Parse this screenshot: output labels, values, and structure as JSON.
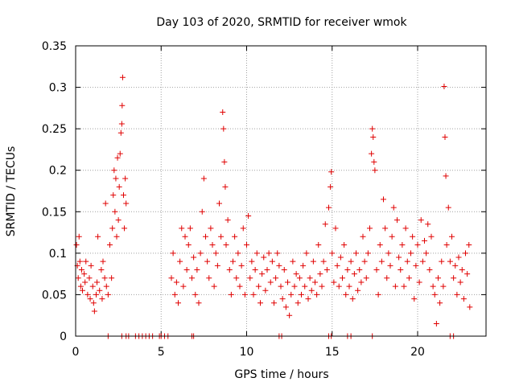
{
  "chart_data": {
    "type": "scatter",
    "title": "Day 103 of 2020, SRMTID for receiver wmok",
    "xlabel": "GPS time / hours",
    "ylabel": "SRMTID / TECUs",
    "xlim": [
      0,
      24
    ],
    "ylim": [
      0,
      0.35
    ],
    "xticks": [
      0,
      5,
      10,
      15,
      20
    ],
    "xtick_labels": [
      "0",
      "5",
      "10",
      "15",
      "20"
    ],
    "yticks": [
      0,
      0.05,
      0.1,
      0.15,
      0.2,
      0.25,
      0.3,
      0.35
    ],
    "ytick_labels": [
      "0",
      "0.05",
      "0.1",
      "0.15",
      "0.2",
      "0.25",
      "0.3",
      "0.35"
    ],
    "grid": true,
    "marker": "plus",
    "color": "#e00000",
    "series": [
      {
        "name": "SRMTID",
        "points": [
          [
            0.05,
            0.11
          ],
          [
            0.1,
            0.085
          ],
          [
            0.15,
            0.07
          ],
          [
            0.2,
            0.12
          ],
          [
            0.25,
            0.09
          ],
          [
            0.3,
            0.06
          ],
          [
            0.35,
            0.08
          ],
          [
            0.4,
            0.055
          ],
          [
            0.5,
            0.075
          ],
          [
            0.55,
            0.065
          ],
          [
            0.6,
            0.09
          ],
          [
            0.7,
            0.05
          ],
          [
            0.8,
            0.07
          ],
          [
            0.85,
            0.045
          ],
          [
            0.9,
            0.085
          ],
          [
            1.0,
            0.06
          ],
          [
            1.05,
            0.04
          ],
          [
            1.1,
            0.03
          ],
          [
            1.2,
            0.05
          ],
          [
            1.25,
            0.065
          ],
          [
            1.3,
            0.12
          ],
          [
            1.4,
            0.055
          ],
          [
            1.5,
            0.08
          ],
          [
            1.55,
            0.045
          ],
          [
            1.6,
            0.09
          ],
          [
            1.7,
            0.07
          ],
          [
            1.75,
            0.16
          ],
          [
            1.8,
            0.06
          ],
          [
            1.9,
            0.05
          ],
          [
            2.0,
            0.11
          ],
          [
            2.1,
            0.07
          ],
          [
            2.15,
            0.13
          ],
          [
            2.2,
            0.17
          ],
          [
            2.25,
            0.2
          ],
          [
            2.3,
            0.15
          ],
          [
            2.35,
            0.19
          ],
          [
            2.4,
            0.12
          ],
          [
            2.45,
            0.215
          ],
          [
            2.5,
            0.14
          ],
          [
            2.55,
            0.18
          ],
          [
            2.6,
            0.22
          ],
          [
            2.65,
            0.245
          ],
          [
            2.7,
            0.256
          ],
          [
            2.72,
            0.278
          ],
          [
            2.75,
            0.312
          ],
          [
            2.8,
            0.17
          ],
          [
            2.85,
            0.13
          ],
          [
            2.9,
            0.19
          ],
          [
            2.95,
            0.16
          ],
          [
            5.6,
            0.07
          ],
          [
            5.7,
            0.1
          ],
          [
            5.8,
            0.05
          ],
          [
            5.9,
            0.065
          ],
          [
            6.0,
            0.04
          ],
          [
            6.1,
            0.09
          ],
          [
            6.2,
            0.13
          ],
          [
            6.3,
            0.06
          ],
          [
            6.4,
            0.12
          ],
          [
            6.5,
            0.08
          ],
          [
            6.6,
            0.11
          ],
          [
            6.7,
            0.13
          ],
          [
            6.8,
            0.07
          ],
          [
            6.9,
            0.095
          ],
          [
            7.0,
            0.05
          ],
          [
            7.1,
            0.08
          ],
          [
            7.2,
            0.04
          ],
          [
            7.3,
            0.1
          ],
          [
            7.4,
            0.15
          ],
          [
            7.5,
            0.19
          ],
          [
            7.6,
            0.12
          ],
          [
            7.7,
            0.09
          ],
          [
            7.8,
            0.07
          ],
          [
            7.9,
            0.13
          ],
          [
            8.0,
            0.11
          ],
          [
            8.1,
            0.06
          ],
          [
            8.2,
            0.1
          ],
          [
            8.3,
            0.085
          ],
          [
            8.4,
            0.16
          ],
          [
            8.5,
            0.12
          ],
          [
            8.6,
            0.27
          ],
          [
            8.65,
            0.25
          ],
          [
            8.7,
            0.21
          ],
          [
            8.75,
            0.18
          ],
          [
            8.8,
            0.11
          ],
          [
            8.9,
            0.14
          ],
          [
            9.0,
            0.08
          ],
          [
            9.1,
            0.05
          ],
          [
            9.2,
            0.09
          ],
          [
            9.3,
            0.12
          ],
          [
            9.4,
            0.07
          ],
          [
            9.5,
            0.1
          ],
          [
            9.6,
            0.06
          ],
          [
            9.7,
            0.085
          ],
          [
            9.8,
            0.13
          ],
          [
            9.9,
            0.05
          ],
          [
            10.0,
            0.11
          ],
          [
            10.1,
            0.145
          ],
          [
            10.2,
            0.07
          ],
          [
            10.3,
            0.09
          ],
          [
            10.4,
            0.05
          ],
          [
            10.5,
            0.08
          ],
          [
            10.6,
            0.1
          ],
          [
            10.7,
            0.06
          ],
          [
            10.8,
            0.04
          ],
          [
            10.9,
            0.075
          ],
          [
            11.0,
            0.095
          ],
          [
            11.1,
            0.055
          ],
          [
            11.2,
            0.08
          ],
          [
            11.3,
            0.1
          ],
          [
            11.4,
            0.065
          ],
          [
            11.5,
            0.09
          ],
          [
            11.6,
            0.04
          ],
          [
            11.7,
            0.07
          ],
          [
            11.8,
            0.1
          ],
          [
            11.9,
            0.085
          ],
          [
            12.0,
            0.06
          ],
          [
            12.1,
            0.045
          ],
          [
            12.2,
            0.08
          ],
          [
            12.3,
            0.035
          ],
          [
            12.4,
            0.065
          ],
          [
            12.5,
            0.025
          ],
          [
            12.6,
            0.05
          ],
          [
            12.7,
            0.09
          ],
          [
            12.8,
            0.06
          ],
          [
            12.9,
            0.075
          ],
          [
            13.0,
            0.04
          ],
          [
            13.1,
            0.07
          ],
          [
            13.2,
            0.05
          ],
          [
            13.3,
            0.085
          ],
          [
            13.4,
            0.06
          ],
          [
            13.5,
            0.1
          ],
          [
            13.6,
            0.045
          ],
          [
            13.7,
            0.07
          ],
          [
            13.8,
            0.055
          ],
          [
            13.9,
            0.09
          ],
          [
            14.0,
            0.065
          ],
          [
            14.1,
            0.05
          ],
          [
            14.2,
            0.11
          ],
          [
            14.3,
            0.075
          ],
          [
            14.4,
            0.06
          ],
          [
            14.5,
            0.09
          ],
          [
            14.6,
            0.135
          ],
          [
            14.7,
            0.08
          ],
          [
            14.8,
            0.155
          ],
          [
            14.9,
            0.18
          ],
          [
            14.95,
            0.198
          ],
          [
            15.0,
            0.1
          ],
          [
            15.1,
            0.065
          ],
          [
            15.2,
            0.13
          ],
          [
            15.3,
            0.085
          ],
          [
            15.4,
            0.06
          ],
          [
            15.5,
            0.095
          ],
          [
            15.6,
            0.07
          ],
          [
            15.7,
            0.11
          ],
          [
            15.8,
            0.05
          ],
          [
            15.9,
            0.08
          ],
          [
            16.0,
            0.06
          ],
          [
            16.1,
            0.09
          ],
          [
            16.2,
            0.045
          ],
          [
            16.3,
            0.075
          ],
          [
            16.4,
            0.1
          ],
          [
            16.5,
            0.055
          ],
          [
            16.6,
            0.08
          ],
          [
            16.7,
            0.065
          ],
          [
            16.8,
            0.12
          ],
          [
            16.9,
            0.09
          ],
          [
            17.0,
            0.07
          ],
          [
            17.1,
            0.1
          ],
          [
            17.2,
            0.13
          ],
          [
            17.3,
            0.22
          ],
          [
            17.35,
            0.25
          ],
          [
            17.4,
            0.24
          ],
          [
            17.45,
            0.21
          ],
          [
            17.5,
            0.2
          ],
          [
            17.6,
            0.08
          ],
          [
            17.7,
            0.05
          ],
          [
            17.8,
            0.11
          ],
          [
            17.9,
            0.09
          ],
          [
            18.0,
            0.165
          ],
          [
            18.1,
            0.13
          ],
          [
            18.2,
            0.07
          ],
          [
            18.3,
            0.1
          ],
          [
            18.4,
            0.085
          ],
          [
            18.5,
            0.12
          ],
          [
            18.6,
            0.155
          ],
          [
            18.7,
            0.06
          ],
          [
            18.8,
            0.14
          ],
          [
            18.9,
            0.095
          ],
          [
            19.0,
            0.08
          ],
          [
            19.1,
            0.11
          ],
          [
            19.2,
            0.06
          ],
          [
            19.3,
            0.13
          ],
          [
            19.4,
            0.09
          ],
          [
            19.5,
            0.07
          ],
          [
            19.6,
            0.1
          ],
          [
            19.7,
            0.12
          ],
          [
            19.8,
            0.045
          ],
          [
            19.9,
            0.085
          ],
          [
            20.0,
            0.11
          ],
          [
            20.1,
            0.065
          ],
          [
            20.2,
            0.14
          ],
          [
            20.3,
            0.09
          ],
          [
            20.4,
            0.115
          ],
          [
            20.5,
            0.1
          ],
          [
            20.6,
            0.135
          ],
          [
            20.7,
            0.08
          ],
          [
            20.8,
            0.12
          ],
          [
            20.9,
            0.06
          ],
          [
            21.0,
            0.05
          ],
          [
            21.1,
            0.015
          ],
          [
            21.2,
            0.07
          ],
          [
            21.3,
            0.04
          ],
          [
            21.4,
            0.09
          ],
          [
            21.5,
            0.06
          ],
          [
            21.55,
            0.301
          ],
          [
            21.6,
            0.24
          ],
          [
            21.65,
            0.193
          ],
          [
            21.7,
            0.11
          ],
          [
            21.8,
            0.155
          ],
          [
            21.9,
            0.09
          ],
          [
            22.0,
            0.12
          ],
          [
            22.1,
            0.07
          ],
          [
            22.2,
            0.085
          ],
          [
            22.3,
            0.05
          ],
          [
            22.4,
            0.095
          ],
          [
            22.5,
            0.065
          ],
          [
            22.6,
            0.08
          ],
          [
            22.7,
            0.045
          ],
          [
            22.8,
            0.1
          ],
          [
            22.9,
            0.075
          ],
          [
            23.0,
            0.11
          ],
          [
            23.05,
            0.035
          ],
          [
            1.9,
            0
          ],
          [
            2.7,
            0
          ],
          [
            2.95,
            0
          ],
          [
            3.1,
            0
          ],
          [
            3.5,
            0
          ],
          [
            3.7,
            0
          ],
          [
            3.9,
            0
          ],
          [
            4.1,
            0
          ],
          [
            4.3,
            0
          ],
          [
            4.5,
            0
          ],
          [
            4.9,
            0
          ],
          [
            5.0,
            0
          ],
          [
            5.2,
            0
          ],
          [
            5.4,
            0
          ],
          [
            6.8,
            0
          ],
          [
            6.9,
            0
          ],
          [
            11.9,
            0
          ],
          [
            12.05,
            0
          ],
          [
            14.8,
            0
          ],
          [
            14.95,
            0
          ],
          [
            15.9,
            0
          ],
          [
            16.1,
            0
          ],
          [
            17.35,
            0
          ],
          [
            21.9,
            0
          ],
          [
            22.1,
            0
          ]
        ]
      }
    ]
  }
}
